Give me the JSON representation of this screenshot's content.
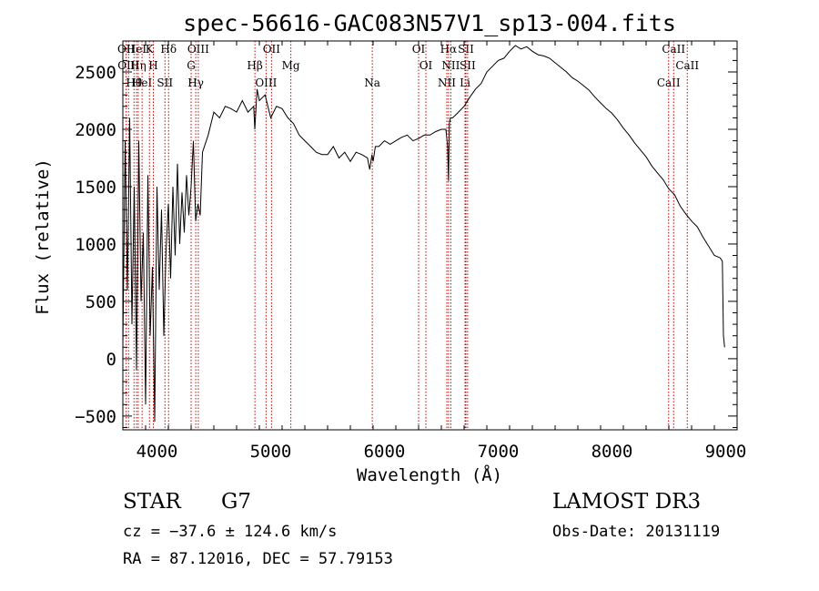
{
  "chart_data": {
    "type": "line",
    "title": "spec-56616-GAC083N57V1_sp13-004.fits",
    "xlabel": "Wavelength (Å)",
    "ylabel": "Flux (relative)",
    "xlim": [
      3700,
      9100
    ],
    "ylim": [
      -620,
      2770
    ],
    "x_ticks": [
      4000,
      5000,
      6000,
      7000,
      8000,
      9000
    ],
    "y_ticks": [
      -500,
      0,
      500,
      1000,
      1500,
      2000,
      2500
    ],
    "series": [
      {
        "name": "flux",
        "x": [
          3700,
          3720,
          3740,
          3760,
          3780,
          3800,
          3820,
          3840,
          3860,
          3880,
          3900,
          3920,
          3940,
          3960,
          3980,
          4000,
          4020,
          4040,
          4060,
          4080,
          4100,
          4120,
          4140,
          4160,
          4180,
          4200,
          4220,
          4240,
          4260,
          4280,
          4300,
          4320,
          4340,
          4360,
          4380,
          4400,
          4450,
          4500,
          4550,
          4600,
          4650,
          4700,
          4750,
          4800,
          4850,
          4860,
          4880,
          4900,
          4950,
          5000,
          5050,
          5100,
          5150,
          5200,
          5250,
          5300,
          5350,
          5400,
          5450,
          5500,
          5550,
          5600,
          5650,
          5700,
          5750,
          5800,
          5850,
          5870,
          5890,
          5900,
          5920,
          5950,
          6000,
          6050,
          6100,
          6150,
          6200,
          6250,
          6300,
          6350,
          6400,
          6450,
          6500,
          6540,
          6555,
          6563,
          6570,
          6580,
          6600,
          6650,
          6700,
          6750,
          6800,
          6850,
          6900,
          6950,
          7000,
          7050,
          7100,
          7150,
          7200,
          7250,
          7300,
          7350,
          7400,
          7450,
          7500,
          7550,
          7600,
          7650,
          7700,
          7750,
          7800,
          7850,
          7900,
          7950,
          8000,
          8050,
          8100,
          8150,
          8200,
          8250,
          8300,
          8350,
          8400,
          8450,
          8500,
          8550,
          8600,
          8650,
          8700,
          8750,
          8800,
          8850,
          8900,
          8950,
          8970,
          8980,
          8990
        ],
        "y": [
          100,
          1900,
          600,
          2100,
          300,
          1500,
          -100,
          1900,
          500,
          1100,
          -400,
          1600,
          200,
          800,
          -550,
          1500,
          600,
          1300,
          200,
          950,
          1350,
          700,
          1500,
          900,
          1700,
          1000,
          1450,
          1100,
          1600,
          1250,
          1500,
          1900,
          1200,
          1350,
          1250,
          1800,
          1950,
          2150,
          2100,
          2200,
          2180,
          2150,
          2250,
          2150,
          2200,
          2000,
          2350,
          2250,
          2300,
          2100,
          2200,
          2180,
          2100,
          2050,
          1950,
          1900,
          1850,
          1800,
          1780,
          1780,
          1850,
          1750,
          1800,
          1720,
          1800,
          1780,
          1750,
          1650,
          1780,
          1720,
          1850,
          1850,
          1900,
          1870,
          1900,
          1930,
          1950,
          1900,
          1920,
          1950,
          1950,
          1980,
          2000,
          2000,
          1850,
          1550,
          2050,
          2100,
          2100,
          2150,
          2200,
          2280,
          2350,
          2400,
          2500,
          2550,
          2600,
          2620,
          2680,
          2730,
          2700,
          2720,
          2680,
          2650,
          2640,
          2620,
          2580,
          2540,
          2500,
          2450,
          2420,
          2380,
          2340,
          2280,
          2230,
          2180,
          2140,
          2080,
          2010,
          1950,
          1880,
          1820,
          1760,
          1680,
          1620,
          1560,
          1480,
          1430,
          1330,
          1260,
          1200,
          1150,
          1060,
          980,
          900,
          880,
          850,
          200,
          100
        ]
      }
    ],
    "line_markers": [
      {
        "wl": 3729,
        "label": "OII"
      },
      {
        "wl": 3750,
        "label": "OIII"
      },
      {
        "wl": 3798,
        "label": "Hθ"
      },
      {
        "wl": 3820,
        "label": "HeI"
      },
      {
        "wl": 3835,
        "label": "Hη"
      },
      {
        "wl": 3869,
        "label": "HeI"
      },
      {
        "wl": 3934,
        "label": "K"
      },
      {
        "wl": 3968,
        "label": "H"
      },
      {
        "wl": 4070,
        "label": "SII"
      },
      {
        "wl": 4102,
        "label": "Hδ"
      },
      {
        "wl": 4300,
        "label": "G"
      },
      {
        "wl": 4341,
        "label": "Hγ"
      },
      {
        "wl": 4363,
        "label": "OIII"
      },
      {
        "wl": 4861,
        "label": "Hβ"
      },
      {
        "wl": 4959,
        "label": "OIII"
      },
      {
        "wl": 5007,
        "label": "OII"
      },
      {
        "wl": 5177,
        "label": "Mg"
      },
      {
        "wl": 5893,
        "label": "Na"
      },
      {
        "wl": 6300,
        "label": "OI"
      },
      {
        "wl": 6364,
        "label": "OI"
      },
      {
        "wl": 6548,
        "label": "NII"
      },
      {
        "wl": 6563,
        "label": "Hα"
      },
      {
        "wl": 6583,
        "label": "NII"
      },
      {
        "wl": 6708,
        "label": "Li"
      },
      {
        "wl": 6716,
        "label": "SII"
      },
      {
        "wl": 6731,
        "label": "SII"
      },
      {
        "wl": 8498,
        "label": "CaII"
      },
      {
        "wl": 8542,
        "label": "CaII"
      },
      {
        "wl": 8662,
        "label": "CaII"
      }
    ]
  },
  "info": {
    "class": "STAR",
    "subclass": "G7",
    "survey": "LAMOST DR3",
    "cz": "cz = −37.6 ± 124.6 km/s",
    "obs_date": "Obs-Date: 20131119",
    "coords": "RA =  87.12016, DEC =  57.79153"
  }
}
